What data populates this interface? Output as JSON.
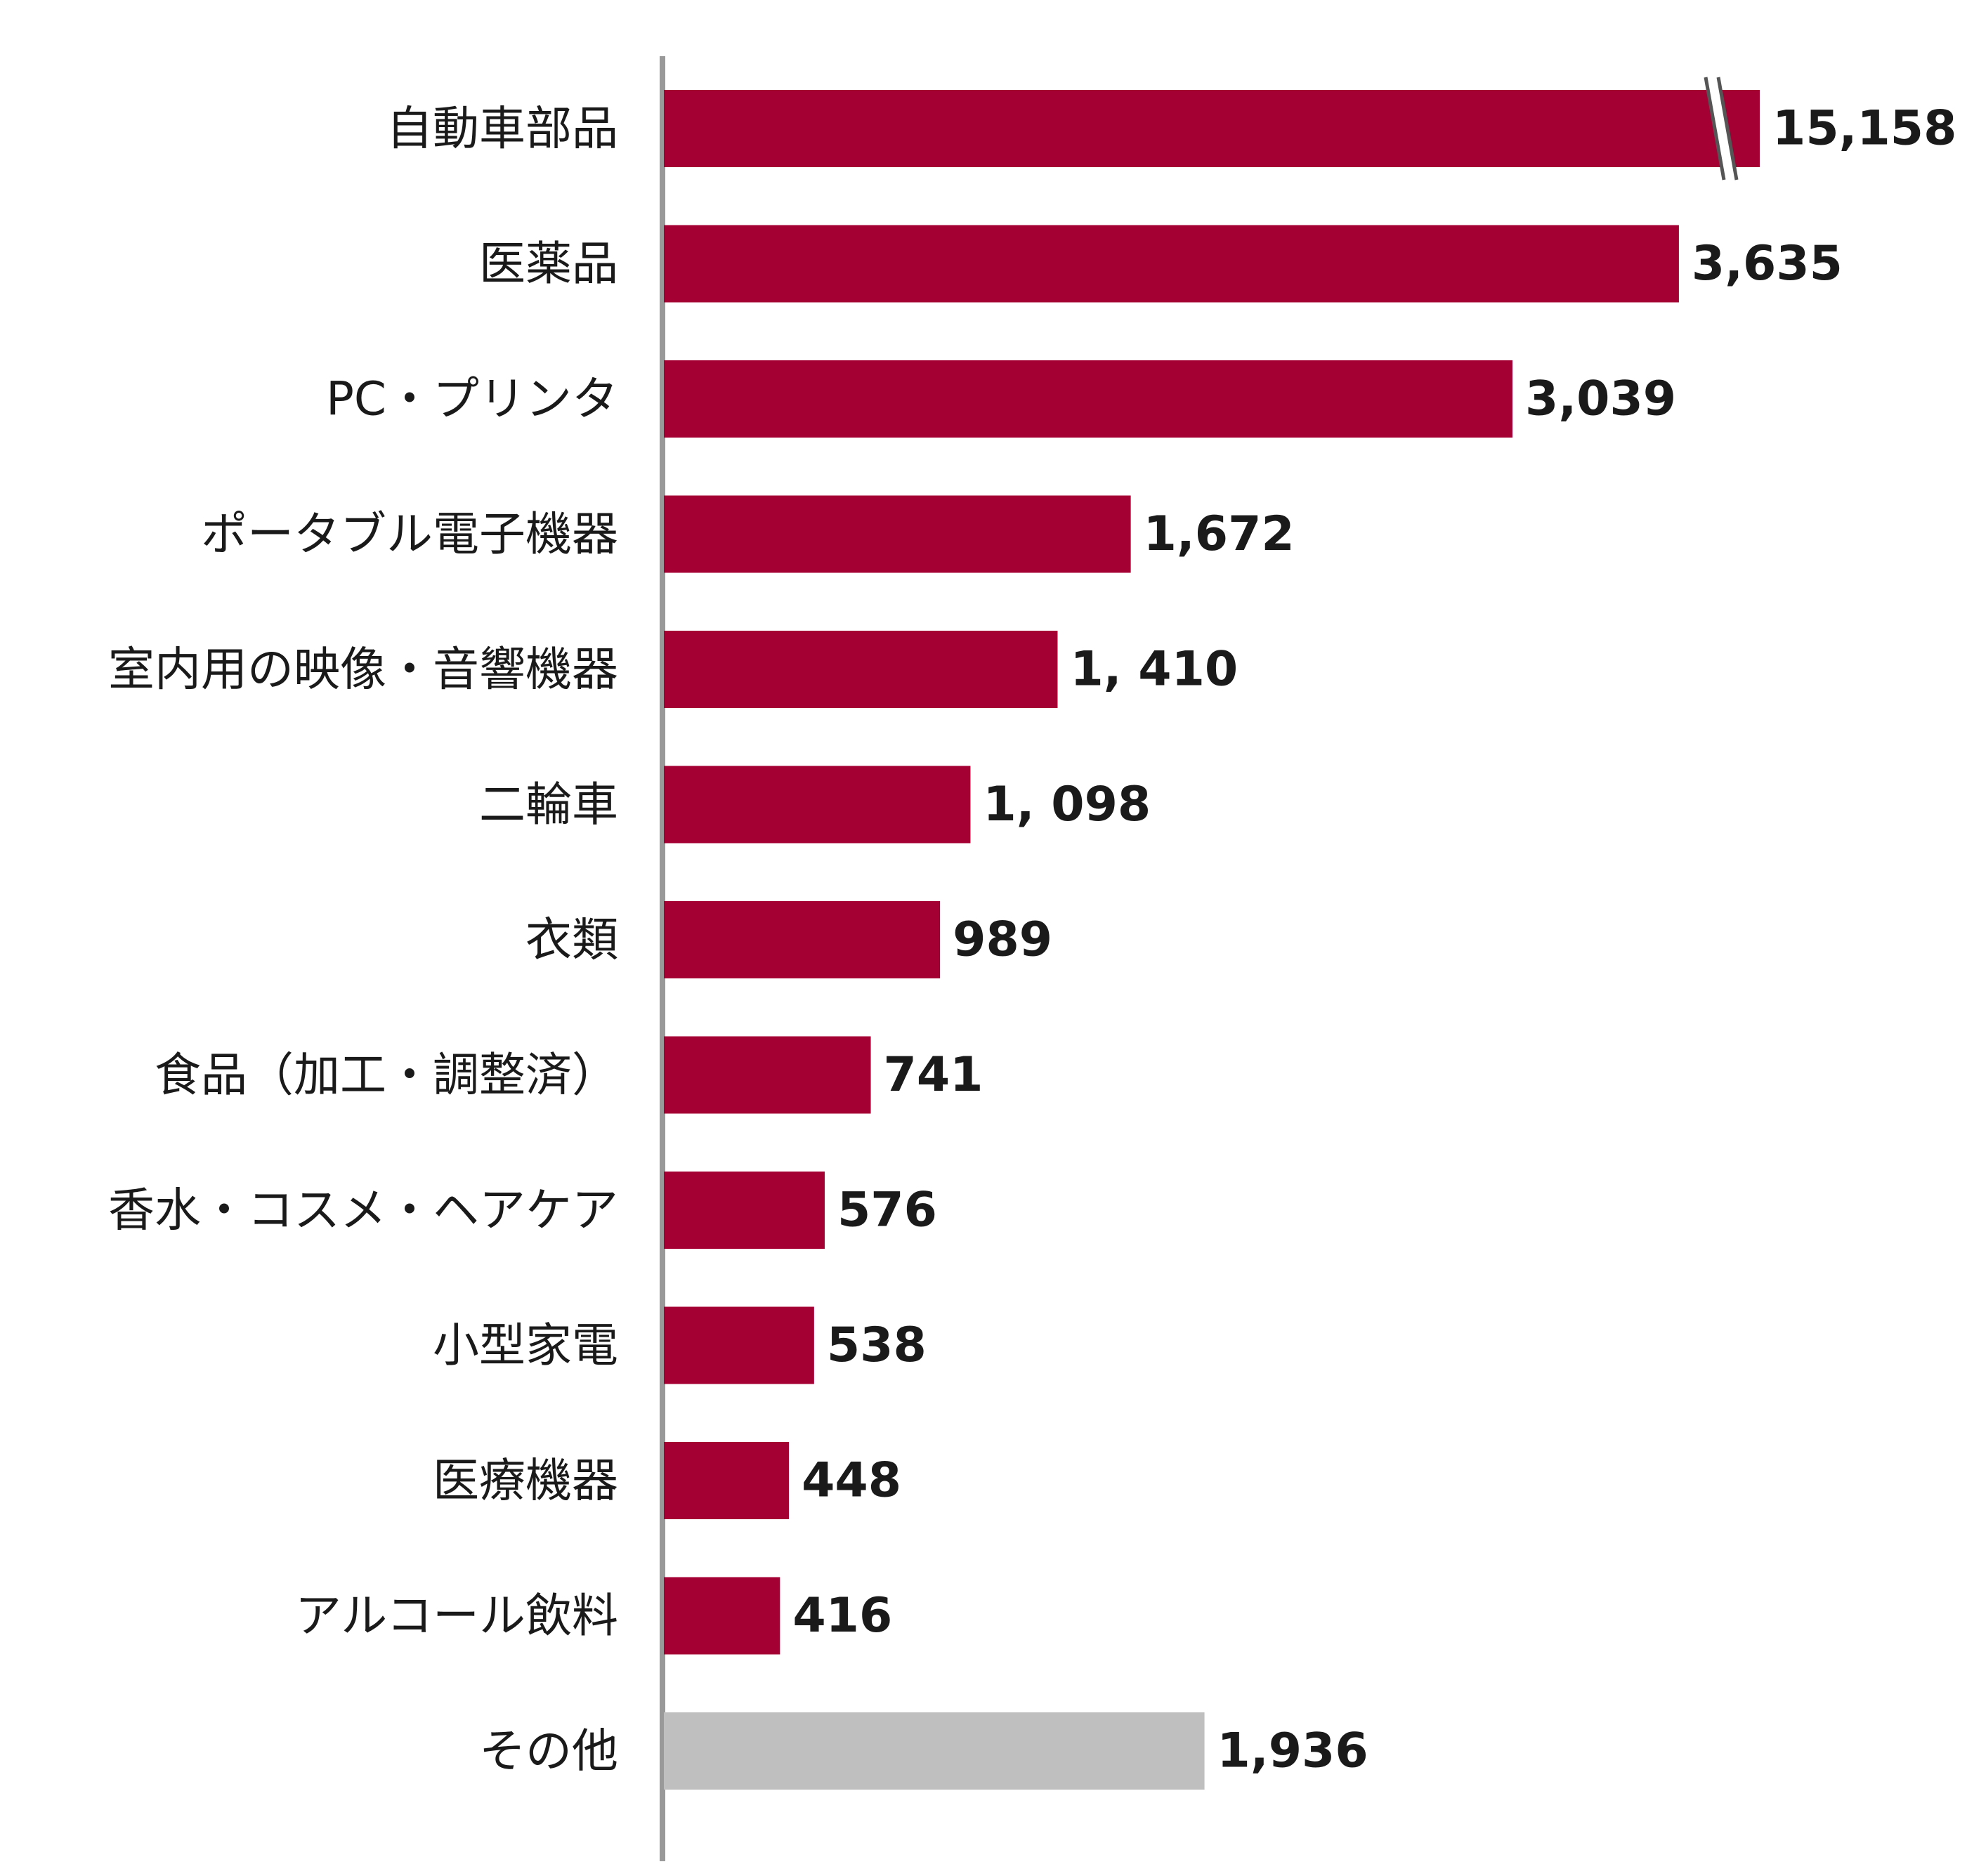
{
  "chart_data": {
    "type": "bar",
    "orientation": "horizontal",
    "categories": [
      "自動車部品",
      "医薬品",
      "PC・プリンタ",
      "ポータブル電子機器",
      "室内用の映像・音響機器",
      "二輪車",
      "衣類",
      "食品（加工・調整済）",
      "香水・コスメ・ヘアケア",
      "小型家電",
      "医療機器",
      "アルコール飲料",
      "その他"
    ],
    "values": [
      15158,
      3635,
      3039,
      1672,
      1410,
      1098,
      989,
      741,
      576,
      538,
      448,
      416,
      1936
    ],
    "value_labels": [
      "15,158",
      "3,635",
      "3,039",
      "1,672",
      "1, 410",
      "1, 098",
      "989",
      "741",
      "576",
      "538",
      "448",
      "416",
      "1,936"
    ],
    "axis_break_on": "自動車部品",
    "colors": {
      "highlight": "#a50034",
      "other": "#bfbfbf",
      "axis": "#999999"
    },
    "bar_color_by_category": {
      "その他": "other"
    },
    "grid": false,
    "legend": "none"
  }
}
